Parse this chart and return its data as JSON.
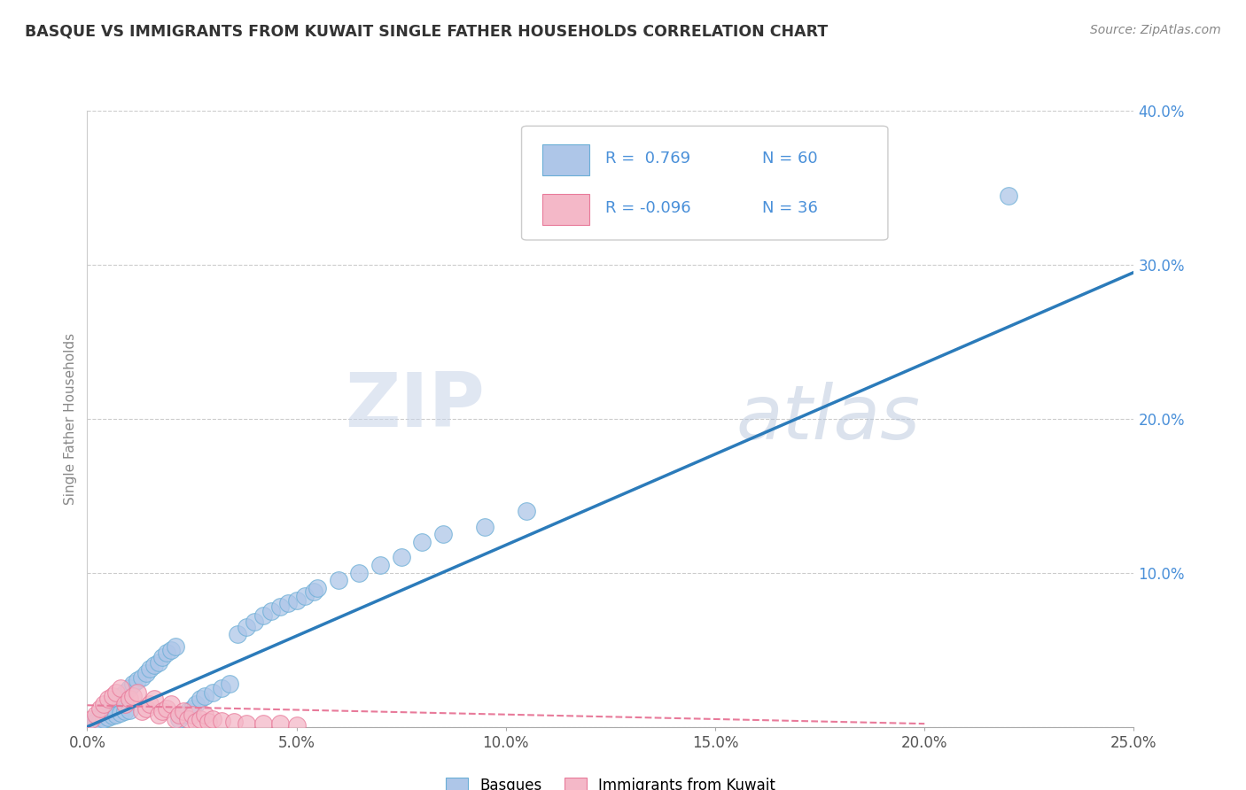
{
  "title": "BASQUE VS IMMIGRANTS FROM KUWAIT SINGLE FATHER HOUSEHOLDS CORRELATION CHART",
  "source": "Source: ZipAtlas.com",
  "ylabel": "Single Father Households",
  "xlim": [
    0.0,
    0.25
  ],
  "ylim": [
    0.0,
    0.4
  ],
  "xticks": [
    0.0,
    0.05,
    0.1,
    0.15,
    0.2,
    0.25
  ],
  "yticks": [
    0.0,
    0.1,
    0.2,
    0.3,
    0.4
  ],
  "xticklabels": [
    "0.0%",
    "5.0%",
    "10.0%",
    "15.0%",
    "20.0%",
    "25.0%"
  ],
  "yticklabels": [
    "",
    "10.0%",
    "20.0%",
    "30.0%",
    "40.0%"
  ],
  "blue_color": "#aec6e8",
  "blue_edge": "#6aaed6",
  "pink_color": "#f4b8c8",
  "pink_edge": "#e87a9a",
  "blue_line_color": "#2b7bba",
  "pink_line_color": "#e87a9a",
  "legend_R_blue": "R =  0.769",
  "legend_N_blue": "N = 60",
  "legend_R_pink": "R = -0.096",
  "legend_N_pink": "N = 36",
  "blue_scatter_x": [
    0.002,
    0.003,
    0.004,
    0.005,
    0.006,
    0.007,
    0.008,
    0.009,
    0.01,
    0.011,
    0.012,
    0.013,
    0.014,
    0.015,
    0.016,
    0.017,
    0.018,
    0.019,
    0.02,
    0.021,
    0.022,
    0.023,
    0.024,
    0.025,
    0.026,
    0.027,
    0.028,
    0.03,
    0.032,
    0.034,
    0.036,
    0.038,
    0.04,
    0.042,
    0.044,
    0.046,
    0.048,
    0.05,
    0.052,
    0.054,
    0.001,
    0.002,
    0.003,
    0.004,
    0.005,
    0.006,
    0.007,
    0.008,
    0.009,
    0.01,
    0.055,
    0.06,
    0.065,
    0.07,
    0.075,
    0.08,
    0.085,
    0.095,
    0.105,
    0.22
  ],
  "blue_scatter_y": [
    0.005,
    0.008,
    0.01,
    0.012,
    0.015,
    0.018,
    0.02,
    0.022,
    0.025,
    0.028,
    0.03,
    0.032,
    0.035,
    0.038,
    0.04,
    0.042,
    0.045,
    0.048,
    0.05,
    0.052,
    0.005,
    0.008,
    0.01,
    0.012,
    0.015,
    0.018,
    0.02,
    0.022,
    0.025,
    0.028,
    0.06,
    0.065,
    0.068,
    0.072,
    0.075,
    0.078,
    0.08,
    0.082,
    0.085,
    0.088,
    0.002,
    0.003,
    0.004,
    0.005,
    0.006,
    0.007,
    0.008,
    0.009,
    0.01,
    0.011,
    0.09,
    0.095,
    0.1,
    0.105,
    0.11,
    0.12,
    0.125,
    0.13,
    0.14,
    0.345
  ],
  "pink_scatter_x": [
    0.001,
    0.002,
    0.003,
    0.004,
    0.005,
    0.006,
    0.007,
    0.008,
    0.009,
    0.01,
    0.011,
    0.012,
    0.013,
    0.014,
    0.015,
    0.016,
    0.017,
    0.018,
    0.019,
    0.02,
    0.021,
    0.022,
    0.023,
    0.024,
    0.025,
    0.026,
    0.027,
    0.028,
    0.029,
    0.03,
    0.032,
    0.035,
    0.038,
    0.042,
    0.046,
    0.05
  ],
  "pink_scatter_y": [
    0.005,
    0.008,
    0.012,
    0.015,
    0.018,
    0.02,
    0.022,
    0.025,
    0.015,
    0.018,
    0.02,
    0.022,
    0.01,
    0.012,
    0.015,
    0.018,
    0.008,
    0.01,
    0.012,
    0.015,
    0.005,
    0.008,
    0.01,
    0.005,
    0.008,
    0.003,
    0.005,
    0.008,
    0.003,
    0.005,
    0.004,
    0.003,
    0.002,
    0.002,
    0.002,
    0.001
  ],
  "blue_line_x": [
    0.0,
    0.25
  ],
  "blue_line_y": [
    0.0,
    0.295
  ],
  "pink_line_x": [
    0.0,
    0.2
  ],
  "pink_line_y": [
    0.014,
    0.002
  ]
}
